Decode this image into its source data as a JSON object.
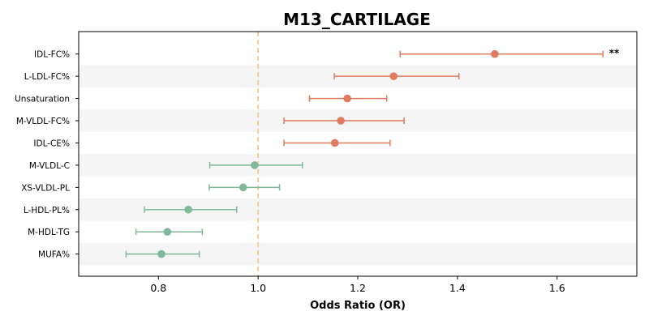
{
  "chart_data": {
    "type": "forest",
    "title": "M13_CARTILAGE",
    "xlabel": "Odds Ratio (OR)",
    "xlim": [
      0.64,
      1.76
    ],
    "xticks": [
      0.8,
      1.0,
      1.2,
      1.4,
      1.6
    ],
    "xtick_labels": [
      "0.8",
      "1.0",
      "1.2",
      "1.4",
      "1.6"
    ],
    "reference_line": 1.0,
    "reference_color": "#f5c57a",
    "colors": {
      "risk": "#e07b5f",
      "protective": "#7fb89a"
    },
    "band_color": "#f5f5f5",
    "rows": [
      {
        "label": "IDL-FC%",
        "or": 1.475,
        "lo": 1.285,
        "hi": 1.692,
        "annotation": "**"
      },
      {
        "label": "L-LDL-FC%",
        "or": 1.272,
        "lo": 1.153,
        "hi": 1.403,
        "annotation": ""
      },
      {
        "label": "Unsaturation",
        "or": 1.179,
        "lo": 1.103,
        "hi": 1.258,
        "annotation": ""
      },
      {
        "label": "M-VLDL-FC%",
        "or": 1.166,
        "lo": 1.052,
        "hi": 1.293,
        "annotation": ""
      },
      {
        "label": "IDL-CE%",
        "or": 1.154,
        "lo": 1.052,
        "hi": 1.265,
        "annotation": ""
      },
      {
        "label": "M-VLDL-C",
        "or": 0.993,
        "lo": 0.903,
        "hi": 1.089,
        "annotation": ""
      },
      {
        "label": "XS-VLDL-PL",
        "or": 0.97,
        "lo": 0.902,
        "hi": 1.043,
        "annotation": ""
      },
      {
        "label": "L-HDL-PL%",
        "or": 0.86,
        "lo": 0.772,
        "hi": 0.957,
        "annotation": ""
      },
      {
        "label": "M-HDL-TG",
        "or": 0.818,
        "lo": 0.755,
        "hi": 0.888,
        "annotation": ""
      },
      {
        "label": "MUFA%",
        "or": 0.806,
        "lo": 0.735,
        "hi": 0.882,
        "annotation": ""
      }
    ]
  }
}
